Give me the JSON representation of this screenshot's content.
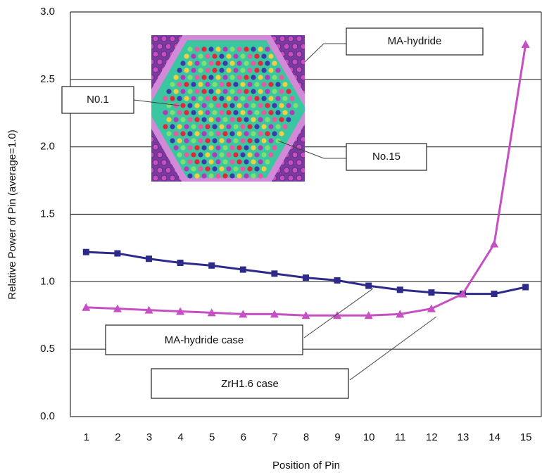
{
  "chart_data": {
    "type": "line",
    "xlabel": "Position of Pin",
    "ylabel": "Relative Power of Pin (average=1.0)",
    "categories": [
      "1",
      "2",
      "3",
      "4",
      "5",
      "6",
      "7",
      "8",
      "9",
      "10",
      "11",
      "12",
      "13",
      "14",
      "15"
    ],
    "series": [
      {
        "name": "MA-hydride case",
        "color": "#2e2a8a",
        "marker": "square",
        "values": [
          1.22,
          1.21,
          1.17,
          1.14,
          1.12,
          1.09,
          1.06,
          1.03,
          1.01,
          0.97,
          0.94,
          0.92,
          0.91,
          0.91,
          0.96
        ]
      },
      {
        "name": "ZrH1.6 case",
        "color": "#c64fc4",
        "marker": "triangle",
        "values": [
          0.81,
          0.8,
          0.79,
          0.78,
          0.77,
          0.76,
          0.76,
          0.75,
          0.75,
          0.75,
          0.76,
          0.8,
          0.91,
          1.28,
          2.76
        ]
      }
    ],
    "ylim": [
      0,
      3
    ],
    "yticks": [
      {
        "value": 0,
        "label": "0.0"
      },
      0.5,
      {
        "value": 1,
        "label": "1.0"
      },
      1.5,
      {
        "value": 2,
        "label": "2.0"
      },
      2.5,
      {
        "value": 3,
        "label": "3.0"
      }
    ],
    "grid": true,
    "annotations": [
      "MA-hydride",
      "N0.1",
      "No.15"
    ]
  }
}
